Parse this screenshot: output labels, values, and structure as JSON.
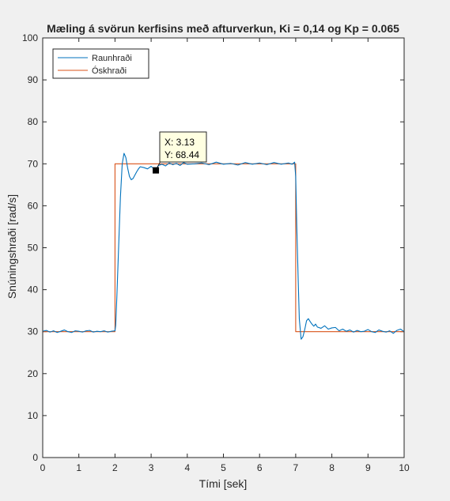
{
  "colors": {
    "figure_bg": "#f0f0f0",
    "axes_bg": "#ffffff",
    "axis": "#262626",
    "text": "#262626",
    "series_1": "#0072bd",
    "series_2": "#d95319",
    "tooltip_bg": "#ffffe1",
    "datatip_marker": "#000000"
  },
  "chart_data": {
    "type": "line",
    "title": "Mæling á svörun kerfisins með afturverkun, Ki = 0,14 og Kp = 0.065",
    "xlabel": "Tími [sek]",
    "ylabel": "Snúningshraði [rad/s]",
    "xlim": [
      0,
      10
    ],
    "ylim": [
      0,
      100
    ],
    "xticks": [
      0,
      1,
      2,
      3,
      4,
      5,
      6,
      7,
      8,
      9,
      10
    ],
    "yticks": [
      0,
      10,
      20,
      30,
      40,
      50,
      60,
      70,
      80,
      90,
      100
    ],
    "grid": false,
    "legend_position": "top-left",
    "series": [
      {
        "name": "Raunhraði",
        "color": "#0072bd",
        "x": [
          0,
          0.1,
          0.2,
          0.3,
          0.4,
          0.5,
          0.6,
          0.7,
          0.8,
          0.9,
          1.0,
          1.1,
          1.2,
          1.3,
          1.4,
          1.5,
          1.6,
          1.7,
          1.8,
          1.9,
          2.0,
          2.02,
          2.05,
          2.1,
          2.15,
          2.2,
          2.25,
          2.3,
          2.35,
          2.4,
          2.45,
          2.5,
          2.55,
          2.6,
          2.65,
          2.7,
          2.8,
          2.9,
          3.0,
          3.1,
          3.13,
          3.2,
          3.3,
          3.4,
          3.5,
          3.6,
          3.7,
          3.8,
          3.9,
          4.0,
          4.2,
          4.4,
          4.6,
          4.8,
          5.0,
          5.2,
          5.4,
          5.6,
          5.8,
          6.0,
          6.2,
          6.4,
          6.6,
          6.8,
          6.9,
          6.97,
          7.0,
          7.03,
          7.07,
          7.1,
          7.15,
          7.2,
          7.25,
          7.3,
          7.35,
          7.4,
          7.45,
          7.5,
          7.55,
          7.6,
          7.7,
          7.8,
          7.9,
          8.0,
          8.1,
          8.2,
          8.3,
          8.4,
          8.5,
          8.6,
          8.7,
          8.8,
          8.9,
          9.0,
          9.1,
          9.2,
          9.3,
          9.4,
          9.5,
          9.6,
          9.7,
          9.8,
          9.9,
          10.0
        ],
        "y": [
          30.1,
          30.3,
          29.9,
          30.2,
          29.8,
          30.1,
          30.4,
          30.0,
          29.8,
          30.2,
          30.1,
          29.9,
          30.2,
          30.3,
          29.9,
          30.1,
          30.0,
          30.2,
          29.9,
          30.1,
          30.2,
          31.5,
          38,
          50,
          62,
          70,
          72.5,
          71.5,
          69,
          67,
          66.2,
          66.5,
          67.3,
          68.1,
          68.8,
          69.3,
          69.1,
          68.8,
          69.4,
          68.6,
          68.44,
          69.6,
          69.9,
          69.5,
          70.2,
          69.8,
          70.1,
          69.6,
          70.3,
          69.9,
          70.0,
          70.2,
          69.8,
          70.4,
          69.9,
          70.1,
          69.7,
          70.3,
          69.9,
          70.2,
          69.8,
          70.3,
          69.9,
          70.2,
          69.9,
          70.4,
          67,
          55,
          42,
          33,
          28.2,
          28.8,
          30.5,
          32.6,
          33.1,
          32.4,
          31.8,
          31.3,
          31.8,
          31.1,
          30.8,
          31.4,
          30.6,
          30.9,
          31.0,
          30.2,
          30.6,
          30.1,
          30.4,
          29.9,
          30.3,
          30.0,
          30.1,
          30.5,
          30.0,
          29.8,
          30.4,
          30.1,
          29.9,
          30.2,
          29.6,
          30.3,
          30.6,
          30.0
        ]
      },
      {
        "name": "Óskhraði",
        "color": "#d95319",
        "x": [
          0,
          2,
          2,
          7,
          7,
          10
        ],
        "y": [
          30,
          30,
          70,
          70,
          30,
          30
        ]
      }
    ],
    "datatip": {
      "x_label": "X: 3.13",
      "y_label": "Y: 68.44",
      "x": 3.13,
      "y": 68.44
    }
  }
}
